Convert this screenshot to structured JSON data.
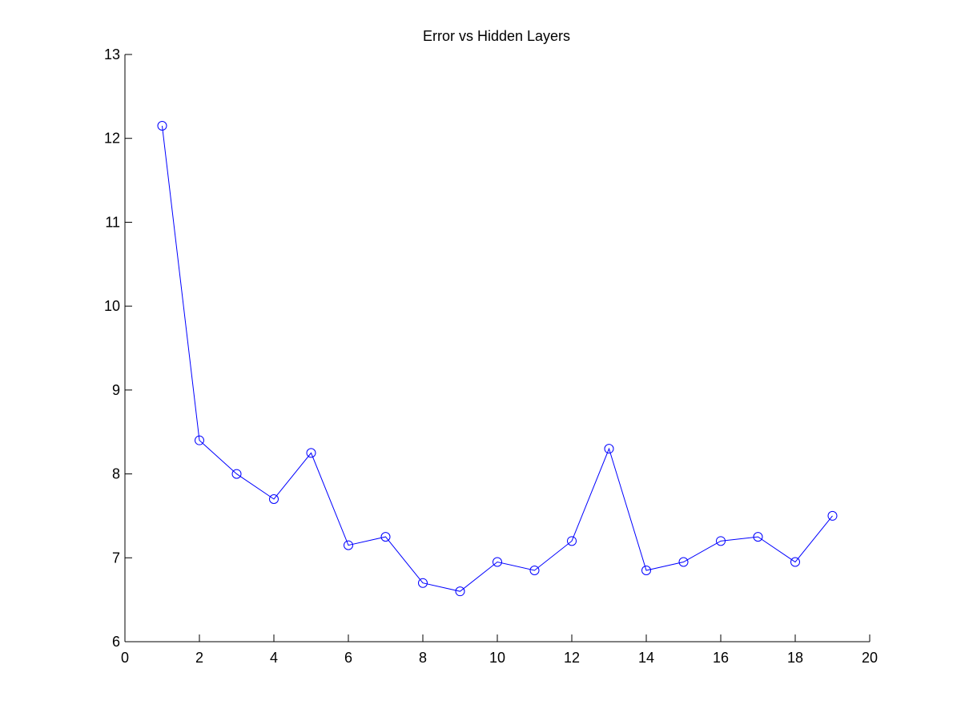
{
  "chart_data": {
    "type": "line",
    "title": "Error vs Hidden Layers",
    "xlabel": "",
    "ylabel": "",
    "xlim": [
      0,
      20
    ],
    "ylim": [
      6,
      13
    ],
    "x_ticks": [
      0,
      2,
      4,
      6,
      8,
      10,
      12,
      14,
      16,
      18,
      20
    ],
    "y_ticks": [
      6,
      7,
      8,
      9,
      10,
      11,
      12,
      13
    ],
    "grid": false,
    "series": [
      {
        "color": "#0000ff",
        "marker": "circle",
        "x": [
          1,
          2,
          3,
          4,
          5,
          6,
          7,
          8,
          9,
          10,
          11,
          12,
          13,
          14,
          15,
          16,
          17,
          18,
          19
        ],
        "y": [
          12.15,
          8.4,
          8.0,
          7.7,
          8.25,
          7.15,
          7.25,
          6.7,
          6.6,
          6.95,
          6.85,
          7.2,
          8.3,
          6.85,
          6.95,
          7.2,
          7.25,
          6.95,
          7.5
        ]
      }
    ]
  }
}
